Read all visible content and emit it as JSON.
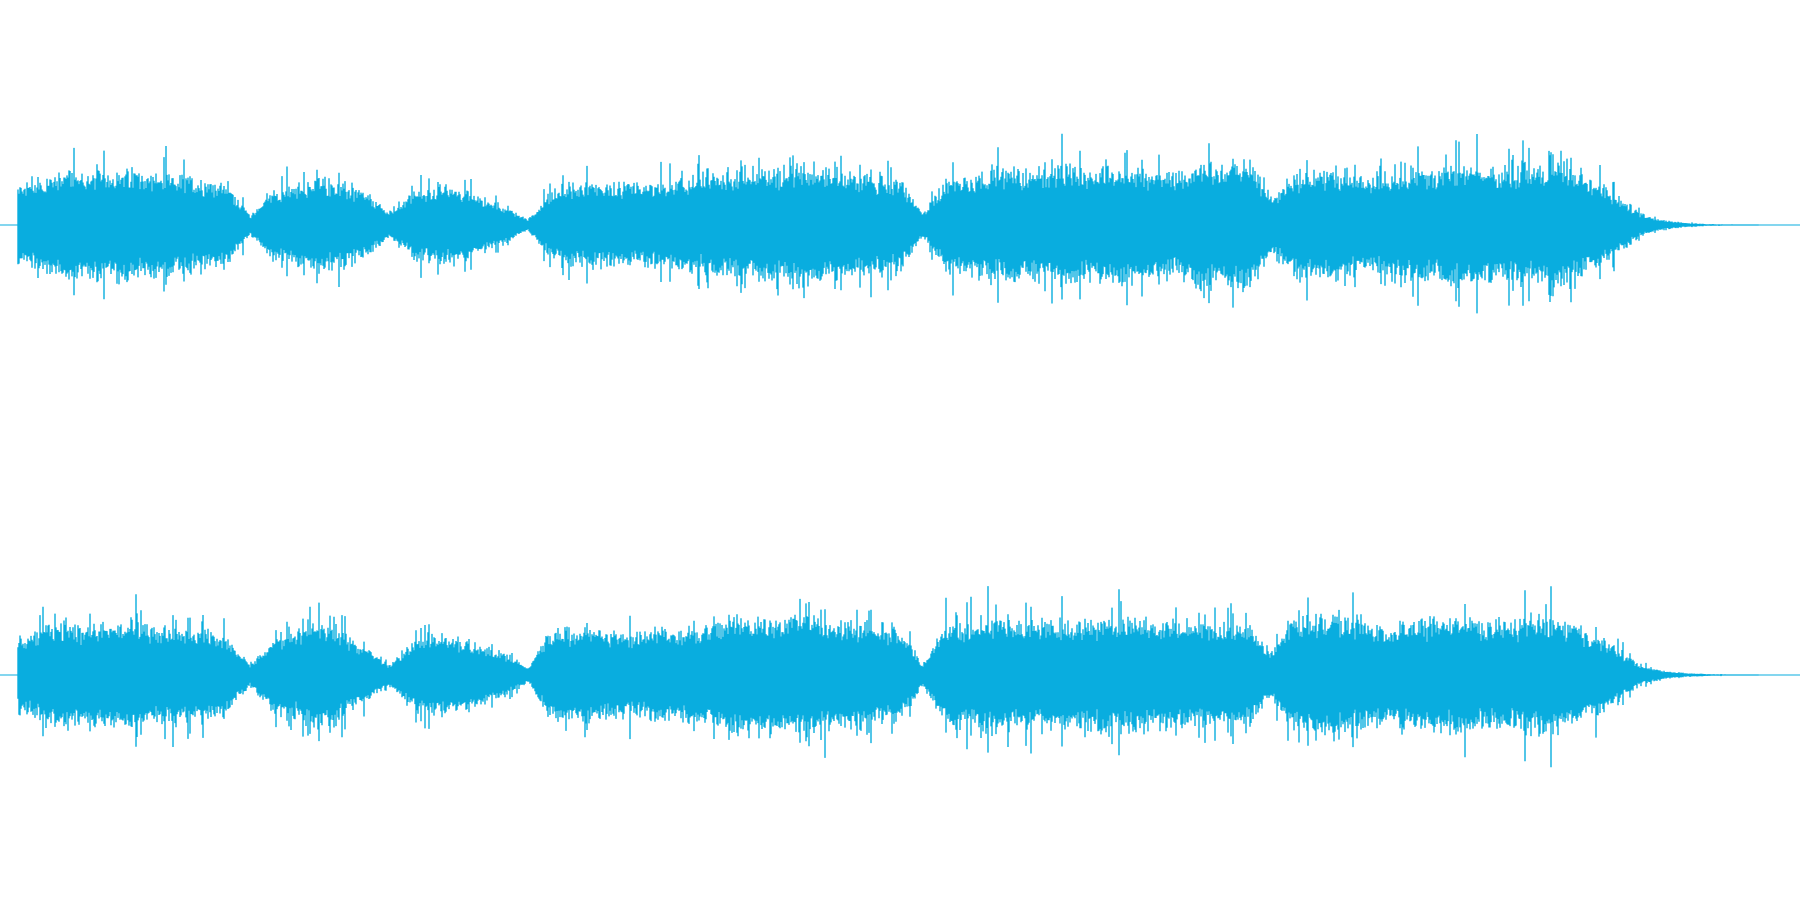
{
  "waveform": {
    "color": "#09addf",
    "background": "#ffffff",
    "channels": [
      {
        "name": "",
        "envelope": [
          0.42,
          0.48,
          0.62,
          0.55,
          0.6,
          0.58,
          0.55,
          0.52,
          0.5,
          0.46,
          0.1,
          0.38,
          0.42,
          0.52,
          0.44,
          0.34,
          0.14,
          0.36,
          0.4,
          0.42,
          0.3,
          0.2,
          0.06,
          0.38,
          0.42,
          0.45,
          0.42,
          0.44,
          0.46,
          0.5,
          0.55,
          0.6,
          0.58,
          0.62,
          0.66,
          0.6,
          0.56,
          0.52,
          0.5,
          0.12,
          0.5,
          0.55,
          0.6,
          0.62,
          0.58,
          0.64,
          0.6,
          0.66,
          0.62,
          0.58,
          0.55,
          0.7,
          0.62,
          0.72,
          0.3,
          0.55,
          0.58,
          0.6,
          0.48,
          0.56,
          0.62,
          0.6,
          0.65,
          0.62,
          0.6,
          0.62,
          0.66,
          0.58,
          0.48,
          0.3,
          0.12,
          0.05,
          0.02,
          0.01,
          0.005,
          0.003
        ]
      },
      {
        "name": "",
        "envelope": [
          0.4,
          0.5,
          0.6,
          0.52,
          0.56,
          0.55,
          0.52,
          0.5,
          0.46,
          0.42,
          0.12,
          0.4,
          0.48,
          0.6,
          0.46,
          0.3,
          0.12,
          0.38,
          0.44,
          0.4,
          0.32,
          0.22,
          0.08,
          0.52,
          0.5,
          0.48,
          0.46,
          0.48,
          0.5,
          0.52,
          0.56,
          0.62,
          0.64,
          0.62,
          0.68,
          0.6,
          0.56,
          0.52,
          0.48,
          0.12,
          0.58,
          0.54,
          0.62,
          0.58,
          0.56,
          0.6,
          0.58,
          0.64,
          0.62,
          0.6,
          0.56,
          0.58,
          0.52,
          0.56,
          0.24,
          0.62,
          0.64,
          0.66,
          0.56,
          0.52,
          0.56,
          0.6,
          0.62,
          0.58,
          0.56,
          0.6,
          0.64,
          0.54,
          0.44,
          0.28,
          0.1,
          0.04,
          0.02,
          0.01,
          0.005,
          0.003
        ]
      }
    ]
  }
}
